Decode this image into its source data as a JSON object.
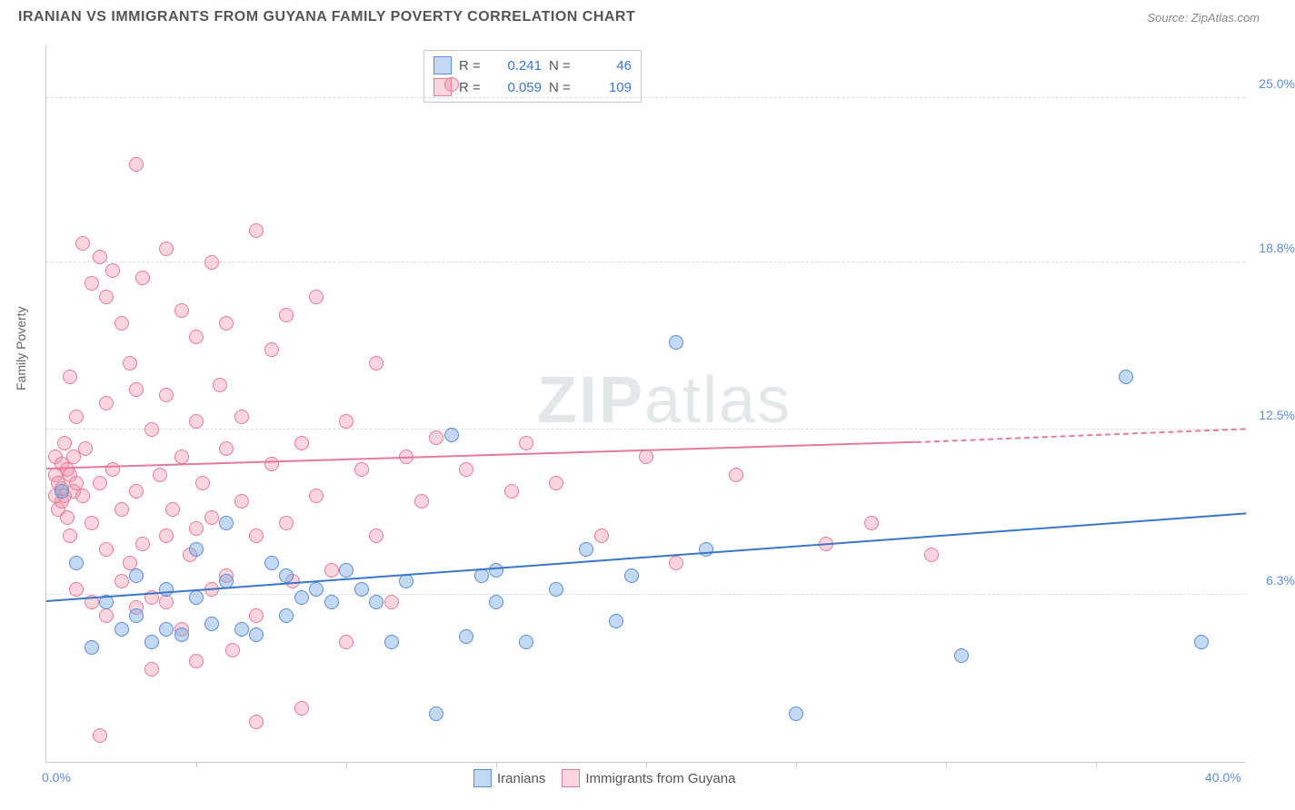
{
  "header": {
    "title": "IRANIAN VS IMMIGRANTS FROM GUYANA FAMILY POVERTY CORRELATION CHART",
    "source": "Source: ZipAtlas.com"
  },
  "watermark": {
    "bold": "ZIP",
    "thin": "atlas"
  },
  "chart": {
    "type": "scatter",
    "ylabel": "Family Poverty",
    "xlim": [
      0,
      40
    ],
    "ylim": [
      0,
      27
    ],
    "yticks": [
      {
        "v": 6.3,
        "label": "6.3%"
      },
      {
        "v": 12.5,
        "label": "12.5%"
      },
      {
        "v": 18.8,
        "label": "18.8%"
      },
      {
        "v": 25.0,
        "label": "25.0%"
      }
    ],
    "xticks_marks": [
      5,
      10,
      15,
      20,
      25,
      30,
      35
    ],
    "xtick_labels": [
      {
        "v": 0,
        "label": "0.0%"
      },
      {
        "v": 40,
        "label": "40.0%"
      }
    ],
    "series_blue": {
      "name": "Iranians",
      "R": "0.241",
      "N": "46",
      "color": "#5b8dd6",
      "fill": "rgba(120,170,225,0.45)",
      "trend": {
        "x1": 0,
        "y1": 6.0,
        "x2": 40,
        "y2": 9.3,
        "color": "#3a76c8"
      },
      "points": [
        [
          0.5,
          10.2
        ],
        [
          1.0,
          7.5
        ],
        [
          1.5,
          4.3
        ],
        [
          2.0,
          6.0
        ],
        [
          2.5,
          5.0
        ],
        [
          3.0,
          5.5
        ],
        [
          3.0,
          7.0
        ],
        [
          3.5,
          4.5
        ],
        [
          4.0,
          6.5
        ],
        [
          4.0,
          5.0
        ],
        [
          4.5,
          4.8
        ],
        [
          5.0,
          8.0
        ],
        [
          5.0,
          6.2
        ],
        [
          5.5,
          5.2
        ],
        [
          6.0,
          9.0
        ],
        [
          6.0,
          6.8
        ],
        [
          6.5,
          5.0
        ],
        [
          7.0,
          4.8
        ],
        [
          7.5,
          7.5
        ],
        [
          8.0,
          7.0
        ],
        [
          8.0,
          5.5
        ],
        [
          8.5,
          6.2
        ],
        [
          9.0,
          6.5
        ],
        [
          9.5,
          6.0
        ],
        [
          10.0,
          7.2
        ],
        [
          10.5,
          6.5
        ],
        [
          11.0,
          6.0
        ],
        [
          11.5,
          4.5
        ],
        [
          12.0,
          6.8
        ],
        [
          13.0,
          1.8
        ],
        [
          13.5,
          12.3
        ],
        [
          14.0,
          4.7
        ],
        [
          14.5,
          7.0
        ],
        [
          15.0,
          7.2
        ],
        [
          15.0,
          6.0
        ],
        [
          16.0,
          4.5
        ],
        [
          17.0,
          6.5
        ],
        [
          18.0,
          8.0
        ],
        [
          19.0,
          5.3
        ],
        [
          19.5,
          7.0
        ],
        [
          21.0,
          15.8
        ],
        [
          22.0,
          8.0
        ],
        [
          25.0,
          1.8
        ],
        [
          30.5,
          4.0
        ],
        [
          36.0,
          14.5
        ],
        [
          38.5,
          4.5
        ]
      ]
    },
    "series_pink": {
      "name": "Immigrants from Guyana",
      "R": "0.059",
      "N": "109",
      "color": "#e67a9a",
      "fill": "rgba(240,150,170,0.4)",
      "trend_solid": {
        "x1": 0,
        "y1": 11.0,
        "x2": 29,
        "y2": 12.0
      },
      "trend_dash": {
        "x1": 29,
        "y1": 12.0,
        "x2": 40,
        "y2": 12.5
      },
      "points": [
        [
          0.3,
          10.8
        ],
        [
          0.3,
          11.5
        ],
        [
          0.3,
          10.0
        ],
        [
          0.4,
          9.5
        ],
        [
          0.4,
          10.5
        ],
        [
          0.5,
          11.2
        ],
        [
          0.5,
          9.8
        ],
        [
          0.5,
          10.3
        ],
        [
          0.6,
          12.0
        ],
        [
          0.6,
          10.0
        ],
        [
          0.7,
          11.0
        ],
        [
          0.7,
          9.2
        ],
        [
          0.8,
          10.8
        ],
        [
          0.8,
          14.5
        ],
        [
          0.8,
          8.5
        ],
        [
          0.9,
          10.2
        ],
        [
          0.9,
          11.5
        ],
        [
          1.0,
          10.5
        ],
        [
          1.0,
          13.0
        ],
        [
          1.0,
          6.5
        ],
        [
          1.2,
          19.5
        ],
        [
          1.2,
          10.0
        ],
        [
          1.3,
          11.8
        ],
        [
          1.5,
          18.0
        ],
        [
          1.5,
          9.0
        ],
        [
          1.5,
          6.0
        ],
        [
          1.8,
          19.0
        ],
        [
          1.8,
          10.5
        ],
        [
          2.0,
          17.5
        ],
        [
          2.0,
          13.5
        ],
        [
          2.0,
          8.0
        ],
        [
          2.0,
          5.5
        ],
        [
          2.2,
          18.5
        ],
        [
          2.2,
          11.0
        ],
        [
          2.5,
          16.5
        ],
        [
          2.5,
          9.5
        ],
        [
          2.5,
          6.8
        ],
        [
          2.8,
          15.0
        ],
        [
          2.8,
          7.5
        ],
        [
          3.0,
          14.0
        ],
        [
          3.0,
          22.5
        ],
        [
          3.0,
          10.2
        ],
        [
          3.0,
          5.8
        ],
        [
          3.2,
          18.2
        ],
        [
          3.2,
          8.2
        ],
        [
          3.5,
          12.5
        ],
        [
          3.5,
          6.2
        ],
        [
          3.5,
          3.5
        ],
        [
          3.8,
          10.8
        ],
        [
          4.0,
          19.3
        ],
        [
          4.0,
          13.8
        ],
        [
          4.0,
          8.5
        ],
        [
          4.0,
          6.0
        ],
        [
          4.2,
          9.5
        ],
        [
          4.5,
          17.0
        ],
        [
          4.5,
          11.5
        ],
        [
          4.5,
          5.0
        ],
        [
          4.8,
          7.8
        ],
        [
          5.0,
          16.0
        ],
        [
          5.0,
          12.8
        ],
        [
          5.0,
          8.8
        ],
        [
          5.0,
          3.8
        ],
        [
          5.2,
          10.5
        ],
        [
          5.5,
          18.8
        ],
        [
          5.5,
          9.2
        ],
        [
          5.5,
          6.5
        ],
        [
          5.8,
          14.2
        ],
        [
          6.0,
          16.5
        ],
        [
          6.0,
          11.8
        ],
        [
          6.0,
          7.0
        ],
        [
          6.2,
          4.2
        ],
        [
          6.5,
          9.8
        ],
        [
          6.5,
          13.0
        ],
        [
          7.0,
          20.0
        ],
        [
          7.0,
          8.5
        ],
        [
          7.0,
          5.5
        ],
        [
          7.0,
          1.5
        ],
        [
          7.5,
          11.2
        ],
        [
          7.5,
          15.5
        ],
        [
          8.0,
          9.0
        ],
        [
          8.0,
          16.8
        ],
        [
          8.2,
          6.8
        ],
        [
          8.5,
          12.0
        ],
        [
          8.5,
          2.0
        ],
        [
          9.0,
          17.5
        ],
        [
          9.0,
          10.0
        ],
        [
          9.5,
          7.2
        ],
        [
          10.0,
          12.8
        ],
        [
          10.0,
          4.5
        ],
        [
          10.5,
          11.0
        ],
        [
          11.0,
          8.5
        ],
        [
          11.0,
          15.0
        ],
        [
          11.5,
          6.0
        ],
        [
          12.0,
          11.5
        ],
        [
          12.5,
          9.8
        ],
        [
          13.0,
          12.2
        ],
        [
          13.5,
          25.5
        ],
        [
          14.0,
          11.0
        ],
        [
          15.5,
          10.2
        ],
        [
          16.0,
          12.0
        ],
        [
          17.0,
          10.5
        ],
        [
          18.5,
          8.5
        ],
        [
          20.0,
          11.5
        ],
        [
          21.0,
          7.5
        ],
        [
          23.0,
          10.8
        ],
        [
          26.0,
          8.2
        ],
        [
          27.5,
          9.0
        ],
        [
          29.5,
          7.8
        ],
        [
          1.8,
          1.0
        ]
      ]
    },
    "legend_bottom": [
      {
        "swatch": "blue",
        "label": "Iranians"
      },
      {
        "swatch": "pink",
        "label": "Immigrants from Guyana"
      }
    ],
    "background_color": "#ffffff",
    "grid_color": "#dddddd",
    "marker_size": 16,
    "tick_label_color": "#5b8dd6",
    "title_fontsize": 16,
    "label_fontsize": 14
  }
}
